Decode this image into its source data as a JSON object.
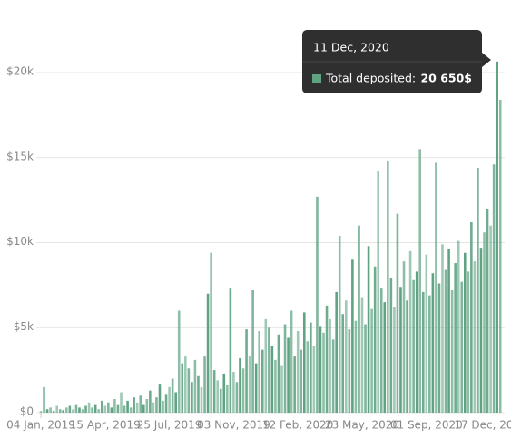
{
  "chart_data": {
    "type": "bar",
    "color": "#5fa383",
    "grid": true,
    "ylim": [
      0,
      20000
    ],
    "yticks": [
      {
        "value": 0,
        "label": "$0"
      },
      {
        "value": 5000,
        "label": "$5k"
      },
      {
        "value": 10000,
        "label": "$10k"
      },
      {
        "value": 15000,
        "label": "$15k"
      },
      {
        "value": 20000,
        "label": "$20k"
      }
    ],
    "categories": [
      "04 Jan, 2019",
      null,
      null,
      null,
      null,
      null,
      null,
      null,
      null,
      null,
      null,
      null,
      null,
      null,
      null,
      null,
      null,
      null,
      null,
      null,
      "15 Apr, 2019",
      null,
      null,
      null,
      null,
      null,
      null,
      null,
      null,
      null,
      null,
      null,
      null,
      null,
      null,
      null,
      null,
      null,
      null,
      null,
      "25 Jul, 2019",
      null,
      null,
      null,
      null,
      null,
      null,
      null,
      null,
      null,
      null,
      null,
      null,
      null,
      null,
      null,
      null,
      null,
      null,
      null,
      "03 Nov, 2019",
      null,
      null,
      null,
      null,
      null,
      null,
      null,
      null,
      null,
      null,
      null,
      null,
      null,
      null,
      null,
      null,
      null,
      null,
      null,
      "12 Feb, 2020",
      null,
      null,
      null,
      null,
      null,
      null,
      null,
      null,
      null,
      null,
      null,
      null,
      null,
      null,
      null,
      null,
      null,
      null,
      null,
      "23 May, 2020",
      null,
      null,
      null,
      null,
      null,
      null,
      null,
      null,
      null,
      null,
      null,
      null,
      null,
      null,
      null,
      null,
      null,
      null,
      null,
      "01 Sep, 2020",
      null,
      null,
      null,
      null,
      null,
      null,
      null,
      null,
      null,
      null,
      null,
      null,
      null,
      null,
      null,
      null,
      null,
      null,
      null,
      "17 Dec, 2020",
      null,
      null,
      null
    ],
    "values": [
      100,
      1500,
      200,
      300,
      100,
      400,
      200,
      150,
      300,
      400,
      200,
      500,
      300,
      200,
      400,
      600,
      300,
      500,
      200,
      700,
      400,
      600,
      300,
      800,
      500,
      1200,
      400,
      700,
      300,
      900,
      600,
      1000,
      500,
      800,
      1300,
      600,
      900,
      1700,
      700,
      1100,
      1500,
      2000,
      1200,
      6000,
      2900,
      3300,
      2600,
      1800,
      3100,
      2200,
      1500,
      3300,
      7000,
      9400,
      2500,
      1900,
      1400,
      2300,
      1600,
      7300,
      2400,
      1800,
      3200,
      2600,
      4900,
      3300,
      7200,
      2900,
      4800,
      3700,
      5500,
      5000,
      3900,
      3100,
      4600,
      2800,
      5200,
      4400,
      6000,
      3300,
      4800,
      3700,
      5900,
      4200,
      5300,
      3900,
      12700,
      5100,
      4700,
      6300,
      5500,
      4300,
      7100,
      10400,
      5800,
      6600,
      4900,
      9000,
      5400,
      11000,
      6800,
      5200,
      9800,
      6100,
      8600,
      14200,
      7300,
      6500,
      14800,
      7900,
      6200,
      11700,
      7400,
      8900,
      6600,
      9500,
      7800,
      8300,
      15500,
      7100,
      9300,
      6900,
      8200,
      14700,
      7600,
      9900,
      8400,
      9600,
      7200,
      8800,
      10100,
      7700,
      9400,
      8300,
      11200,
      8900,
      14400,
      9700,
      10600,
      12000,
      11000,
      14600,
      20650,
      18400
    ],
    "tooltip": {
      "date": "11 Dec, 2020",
      "label": "Total deposited:",
      "value": "20 650$"
    }
  }
}
